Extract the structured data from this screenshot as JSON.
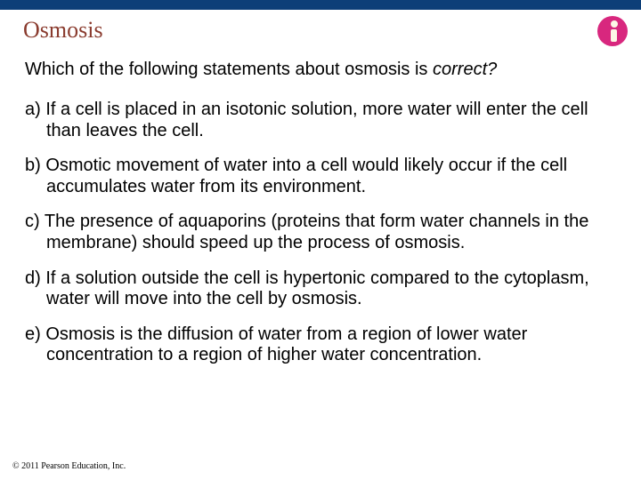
{
  "colors": {
    "topbar": "#0d3f78",
    "title": "#8a3b2e",
    "body_text": "#000000",
    "logo_bg": "#d8277e",
    "logo_inner": "#fdf7e6",
    "copyright": "#000000",
    "background": "#ffffff"
  },
  "title": "Osmosis",
  "question_prefix": "Which of the following statements about osmosis is ",
  "question_ital": "correct?",
  "options": [
    "a) If a cell is placed in an isotonic solution, more water will enter the cell than leaves the cell.",
    "b) Osmotic movement of water into a cell would likely occur if the cell accumulates water from its environment.",
    "c) The presence of aquaporins (proteins that form water channels in the membrane) should speed up the process of osmosis.",
    "d) If a solution outside the cell is hypertonic compared to the cytoplasm, water will move into the cell by osmosis.",
    "e) Osmosis is the diffusion of water from a region of lower water concentration to a region of higher water concentration."
  ],
  "copyright": "© 2011 Pearson Education, Inc."
}
